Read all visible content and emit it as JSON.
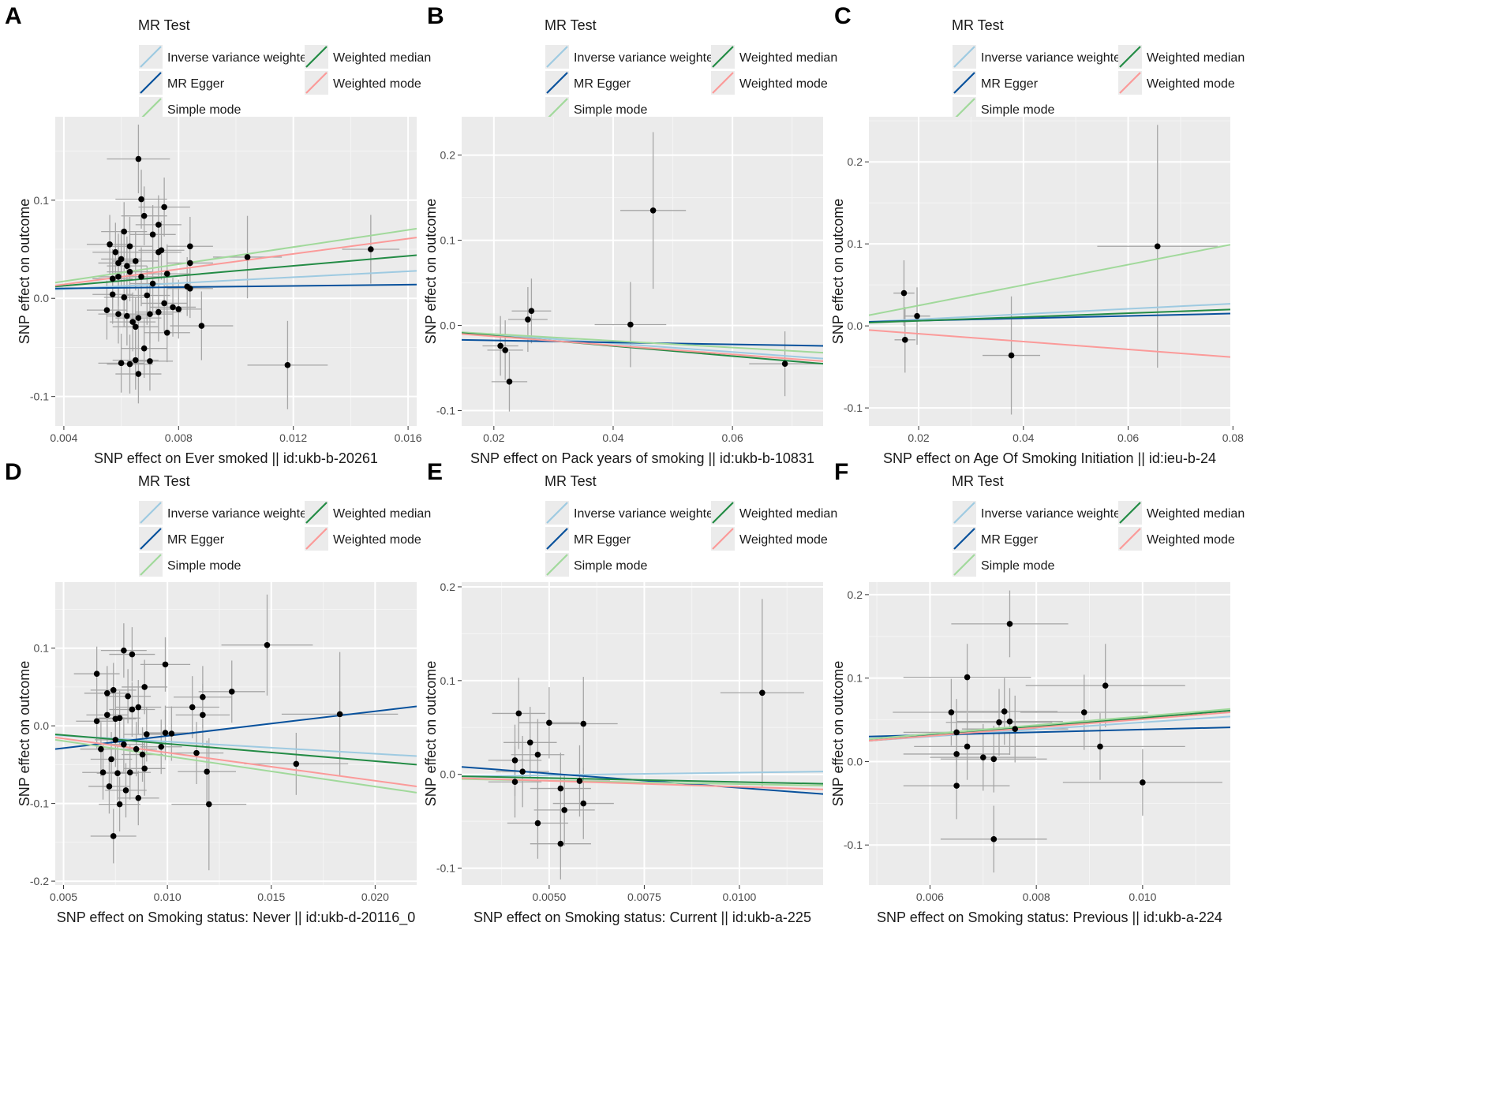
{
  "legend": {
    "title": "MR Test",
    "methods": [
      {
        "key": "ivw",
        "label": "Inverse variance weighted",
        "color": "#9ecae1"
      },
      {
        "key": "egger",
        "label": "MR Egger",
        "color": "#08519c"
      },
      {
        "key": "simple",
        "label": "Simple mode",
        "color": "#a1d99b"
      },
      {
        "key": "wmedian",
        "label": "Weighted median",
        "color": "#238b45"
      },
      {
        "key": "wmode",
        "label": "Weighted mode",
        "color": "#fb9a99"
      }
    ]
  },
  "ylabel": "SNP effect on outcome",
  "chart_data": [
    {
      "panel": "A",
      "type": "scatter",
      "xlabel": "SNP effect on Ever smoked || id:ukb-b-20261",
      "xlim": [
        0.0037,
        0.0163
      ],
      "ylim": [
        -0.13,
        0.185
      ],
      "xticks": [
        0.004,
        0.008,
        0.012,
        0.016
      ],
      "xtick_labels": [
        "0.004",
        "0.008",
        "0.012",
        "0.016"
      ],
      "yticks": [
        -0.1,
        0.0,
        0.1
      ],
      "ytick_labels": [
        "-0.1",
        "0.0",
        "0.1"
      ],
      "lines": {
        "ivw": [
          0.009,
          0.028
        ],
        "egger": [
          0.01,
          0.014
        ],
        "simple": [
          0.016,
          0.071
        ],
        "wmedian": [
          0.012,
          0.044
        ],
        "wmode": [
          0.013,
          0.062
        ]
      },
      "points": [
        [
          0.0066,
          0.142,
          0.0011,
          0.035
        ],
        [
          0.0067,
          0.101,
          0.0009,
          0.03
        ],
        [
          0.0075,
          0.093,
          0.0009,
          0.03
        ],
        [
          0.0068,
          0.084,
          0.0008,
          0.03
        ],
        [
          0.0073,
          0.075,
          0.0008,
          0.03
        ],
        [
          0.0061,
          0.068,
          0.0008,
          0.03
        ],
        [
          0.0071,
          0.065,
          0.0008,
          0.03
        ],
        [
          0.0056,
          0.055,
          0.0008,
          0.03
        ],
        [
          0.0063,
          0.053,
          0.0008,
          0.03
        ],
        [
          0.0058,
          0.047,
          0.0008,
          0.03
        ],
        [
          0.0074,
          0.049,
          0.0008,
          0.03
        ],
        [
          0.006,
          0.04,
          0.0007,
          0.03
        ],
        [
          0.0065,
          0.038,
          0.0008,
          0.03
        ],
        [
          0.0073,
          0.047,
          0.0008,
          0.03
        ],
        [
          0.0059,
          0.036,
          0.0007,
          0.03
        ],
        [
          0.0062,
          0.033,
          0.0007,
          0.03
        ],
        [
          0.0084,
          0.053,
          0.0008,
          0.03
        ],
        [
          0.0084,
          0.036,
          0.0008,
          0.03
        ],
        [
          0.0057,
          0.02,
          0.0007,
          0.03
        ],
        [
          0.0059,
          0.022,
          0.0007,
          0.03
        ],
        [
          0.0063,
          0.027,
          0.0008,
          0.03
        ],
        [
          0.0067,
          0.022,
          0.0008,
          0.03
        ],
        [
          0.0076,
          0.025,
          0.0008,
          0.03
        ],
        [
          0.0071,
          0.015,
          0.0008,
          0.03
        ],
        [
          0.0083,
          0.012,
          0.0008,
          0.03
        ],
        [
          0.0084,
          0.01,
          0.0008,
          0.03
        ],
        [
          0.0057,
          0.004,
          0.0007,
          0.03
        ],
        [
          0.0061,
          0.001,
          0.0007,
          0.03
        ],
        [
          0.0069,
          0.003,
          0.0008,
          0.03
        ],
        [
          0.0075,
          -0.005,
          0.0008,
          0.03
        ],
        [
          0.0078,
          -0.009,
          0.0008,
          0.03
        ],
        [
          0.008,
          -0.011,
          0.0008,
          0.03
        ],
        [
          0.0055,
          -0.012,
          0.0007,
          0.03
        ],
        [
          0.0059,
          -0.016,
          0.0007,
          0.03
        ],
        [
          0.0062,
          -0.018,
          0.0007,
          0.03
        ],
        [
          0.0066,
          -0.02,
          0.0008,
          0.03
        ],
        [
          0.007,
          -0.016,
          0.0008,
          0.03
        ],
        [
          0.0073,
          -0.014,
          0.0008,
          0.03
        ],
        [
          0.0064,
          -0.024,
          0.0008,
          0.03
        ],
        [
          0.0065,
          -0.029,
          0.0008,
          0.03
        ],
        [
          0.0076,
          -0.035,
          0.0008,
          0.03
        ],
        [
          0.0088,
          -0.028,
          0.0011,
          0.035
        ],
        [
          0.0068,
          -0.051,
          0.0008,
          0.03
        ],
        [
          0.006,
          -0.066,
          0.0008,
          0.03
        ],
        [
          0.0063,
          -0.067,
          0.0008,
          0.03
        ],
        [
          0.0065,
          -0.063,
          0.0008,
          0.03
        ],
        [
          0.007,
          -0.064,
          0.0008,
          0.03
        ],
        [
          0.0066,
          -0.077,
          0.0008,
          0.03
        ],
        [
          0.0104,
          0.042,
          0.0012,
          0.042
        ],
        [
          0.0147,
          0.05,
          0.001,
          0.035
        ],
        [
          0.0118,
          -0.068,
          0.0014,
          0.045
        ]
      ]
    },
    {
      "panel": "B",
      "type": "scatter",
      "xlabel": "SNP effect on Pack years of smoking || id:ukb-b-10831",
      "xlim": [
        0.0146,
        0.0752
      ],
      "ylim": [
        -0.118,
        0.245
      ],
      "xticks": [
        0.02,
        0.04,
        0.06
      ],
      "xtick_labels": [
        "0.02",
        "0.04",
        "0.06"
      ],
      "yticks": [
        -0.1,
        0.0,
        0.1,
        0.2
      ],
      "ytick_labels": [
        "-0.1",
        "0.0",
        "0.1",
        "0.2"
      ],
      "lines": {
        "ivw": [
          -0.008,
          -0.039
        ],
        "egger": [
          -0.017,
          -0.024
        ],
        "simple": [
          -0.008,
          -0.032
        ],
        "wmedian": [
          -0.009,
          -0.045
        ],
        "wmode": [
          -0.01,
          -0.042
        ]
      },
      "points": [
        [
          0.0467,
          0.135,
          0.0055,
          0.092
        ],
        [
          0.0263,
          0.017,
          0.0033,
          0.038
        ],
        [
          0.0257,
          0.007,
          0.0033,
          0.038
        ],
        [
          0.0429,
          0.001,
          0.006,
          0.05
        ],
        [
          0.0211,
          -0.024,
          0.003,
          0.035
        ],
        [
          0.0219,
          -0.029,
          0.003,
          0.035
        ],
        [
          0.0226,
          -0.066,
          0.003,
          0.035
        ],
        [
          0.0688,
          -0.045,
          0.006,
          0.038
        ]
      ]
    },
    {
      "panel": "C",
      "type": "scatter",
      "xlabel": "SNP effect on Age Of Smoking Initiation || id:ieu-b-24",
      "xlim": [
        0.0105,
        0.0795
      ],
      "ylim": [
        -0.122,
        0.255
      ],
      "xticks": [
        0.02,
        0.04,
        0.06,
        0.08
      ],
      "xtick_labels": [
        "0.02",
        "0.04",
        "0.06",
        "0.08"
      ],
      "yticks": [
        -0.1,
        0.0,
        0.1,
        0.2
      ],
      "ytick_labels": [
        "-0.1",
        "0.0",
        "0.1",
        "0.2"
      ],
      "lines": {
        "ivw": [
          0.005,
          0.027
        ],
        "egger": [
          0.005,
          0.015
        ],
        "simple": [
          0.013,
          0.099
        ],
        "wmedian": [
          0.004,
          0.02
        ],
        "wmode": [
          -0.005,
          -0.038
        ]
      },
      "points": [
        [
          0.0172,
          0.04,
          0.002,
          0.04
        ],
        [
          0.0174,
          -0.017,
          0.002,
          0.04
        ],
        [
          0.0197,
          0.012,
          0.0025,
          0.035
        ],
        [
          0.0377,
          -0.036,
          0.0055,
          0.072
        ],
        [
          0.0656,
          0.097,
          0.0115,
          0.148
        ]
      ]
    },
    {
      "panel": "D",
      "type": "scatter",
      "xlabel": "SNP effect on Smoking status: Never || id:ukb-d-20116_0",
      "xlim": [
        0.0046,
        0.022
      ],
      "ylim": [
        -0.205,
        0.185
      ],
      "xticks": [
        0.005,
        0.01,
        0.015,
        0.02
      ],
      "xtick_labels": [
        "0.005",
        "0.010",
        "0.015",
        "0.020"
      ],
      "yticks": [
        -0.2,
        -0.1,
        0.0,
        0.1
      ],
      "ytick_labels": [
        "-0.2",
        "-0.1",
        "0.0",
        "0.1"
      ],
      "lines": {
        "ivw": [
          -0.012,
          -0.039
        ],
        "egger": [
          -0.03,
          0.025
        ],
        "simple": [
          -0.018,
          -0.086
        ],
        "wmedian": [
          -0.011,
          -0.05
        ],
        "wmode": [
          -0.015,
          -0.078
        ]
      },
      "points": [
        [
          0.0066,
          0.067,
          0.0011,
          0.035
        ],
        [
          0.0079,
          0.097,
          0.0011,
          0.035
        ],
        [
          0.0083,
          0.092,
          0.0011,
          0.035
        ],
        [
          0.0099,
          0.079,
          0.0012,
          0.035
        ],
        [
          0.0089,
          0.05,
          0.0011,
          0.035
        ],
        [
          0.0074,
          0.046,
          0.0011,
          0.035
        ],
        [
          0.0071,
          0.042,
          0.0011,
          0.035
        ],
        [
          0.0081,
          0.038,
          0.0011,
          0.035
        ],
        [
          0.0086,
          0.024,
          0.0011,
          0.035
        ],
        [
          0.0071,
          0.014,
          0.001,
          0.035
        ],
        [
          0.0075,
          0.009,
          0.001,
          0.035
        ],
        [
          0.0077,
          0.01,
          0.001,
          0.035
        ],
        [
          0.0066,
          0.006,
          0.001,
          0.035
        ],
        [
          0.0083,
          0.021,
          0.0011,
          0.035
        ],
        [
          0.009,
          -0.011,
          0.0011,
          0.035
        ],
        [
          0.0099,
          -0.009,
          0.0011,
          0.035
        ],
        [
          0.0102,
          -0.01,
          0.0011,
          0.035
        ],
        [
          0.0068,
          -0.03,
          0.001,
          0.035
        ],
        [
          0.0075,
          -0.018,
          0.001,
          0.035
        ],
        [
          0.0079,
          -0.024,
          0.001,
          0.035
        ],
        [
          0.0085,
          -0.03,
          0.001,
          0.035
        ],
        [
          0.0088,
          -0.037,
          0.001,
          0.035
        ],
        [
          0.0073,
          -0.043,
          0.001,
          0.035
        ],
        [
          0.0069,
          -0.06,
          0.001,
          0.035
        ],
        [
          0.0076,
          -0.061,
          0.001,
          0.035
        ],
        [
          0.0082,
          -0.06,
          0.001,
          0.035
        ],
        [
          0.0089,
          -0.055,
          0.001,
          0.035
        ],
        [
          0.0097,
          -0.027,
          0.001,
          0.035
        ],
        [
          0.0072,
          -0.078,
          0.001,
          0.035
        ],
        [
          0.008,
          -0.083,
          0.001,
          0.035
        ],
        [
          0.0086,
          -0.093,
          0.001,
          0.035
        ],
        [
          0.0077,
          -0.101,
          0.001,
          0.035
        ],
        [
          0.0074,
          -0.142,
          0.0011,
          0.035
        ],
        [
          0.0117,
          0.037,
          0.0014,
          0.04
        ],
        [
          0.0131,
          0.044,
          0.0016,
          0.04
        ],
        [
          0.0112,
          0.024,
          0.0013,
          0.04
        ],
        [
          0.0117,
          0.014,
          0.0013,
          0.04
        ],
        [
          0.0114,
          -0.035,
          0.0013,
          0.04
        ],
        [
          0.0119,
          -0.059,
          0.0014,
          0.04
        ],
        [
          0.012,
          -0.101,
          0.0018,
          0.085
        ],
        [
          0.0148,
          0.104,
          0.0022,
          0.065
        ],
        [
          0.0162,
          -0.049,
          0.0025,
          0.04
        ],
        [
          0.0183,
          0.015,
          0.0028,
          0.08
        ]
      ]
    },
    {
      "panel": "E",
      "type": "scatter",
      "xlabel": "SNP effect on Smoking status: Current || id:ukb-a-225",
      "xlim": [
        0.0027,
        0.0122
      ],
      "ylim": [
        -0.118,
        0.205
      ],
      "xticks": [
        0.005,
        0.0075,
        0.01
      ],
      "xtick_labels": [
        "0.0050",
        "0.0075",
        "0.0100"
      ],
      "yticks": [
        -0.1,
        0.0,
        0.1,
        0.2
      ],
      "ytick_labels": [
        "-0.1",
        "0.0",
        "0.1",
        "0.2"
      ],
      "lines": {
        "ivw": [
          -0.002,
          0.003
        ],
        "egger": [
          0.008,
          -0.021
        ],
        "simple": [
          -0.005,
          -0.012
        ],
        "wmedian": [
          -0.002,
          -0.01
        ],
        "wmode": [
          -0.004,
          -0.016
        ]
      },
      "points": [
        [
          0.0106,
          0.087,
          0.0011,
          0.1
        ],
        [
          0.0042,
          0.065,
          0.0007,
          0.038
        ],
        [
          0.005,
          0.055,
          0.0008,
          0.038
        ],
        [
          0.0059,
          0.054,
          0.0009,
          0.05
        ],
        [
          0.0045,
          0.034,
          0.0007,
          0.038
        ],
        [
          0.0047,
          0.021,
          0.0007,
          0.038
        ],
        [
          0.0041,
          0.015,
          0.0007,
          0.038
        ],
        [
          0.0043,
          0.003,
          0.0007,
          0.038
        ],
        [
          0.0041,
          -0.008,
          0.0007,
          0.038
        ],
        [
          0.0058,
          -0.007,
          0.0008,
          0.038
        ],
        [
          0.0053,
          -0.015,
          0.0008,
          0.038
        ],
        [
          0.0059,
          -0.031,
          0.0008,
          0.038
        ],
        [
          0.0054,
          -0.038,
          0.0008,
          0.038
        ],
        [
          0.0047,
          -0.052,
          0.0008,
          0.038
        ],
        [
          0.0053,
          -0.074,
          0.0008,
          0.038
        ]
      ]
    },
    {
      "panel": "F",
      "type": "scatter",
      "xlabel": "SNP effect on Smoking status: Previous || id:ukb-a-224",
      "xlim": [
        0.00485,
        0.01165
      ],
      "ylim": [
        -0.148,
        0.215
      ],
      "xticks": [
        0.006,
        0.008,
        0.01
      ],
      "xtick_labels": [
        "0.006",
        "0.008",
        "0.010"
      ],
      "yticks": [
        -0.1,
        0.0,
        0.1,
        0.2
      ],
      "ytick_labels": [
        "-0.1",
        "0.0",
        "0.1",
        "0.2"
      ],
      "lines": {
        "ivw": [
          0.025,
          0.054
        ],
        "egger": [
          0.03,
          0.041
        ],
        "simple": [
          0.027,
          0.063
        ],
        "wmedian": [
          0.025,
          0.061
        ],
        "wmode": [
          0.025,
          0.059
        ]
      },
      "points": [
        [
          0.0075,
          0.165,
          0.0011,
          0.04
        ],
        [
          0.0067,
          0.101,
          0.0012,
          0.04
        ],
        [
          0.0093,
          0.091,
          0.0015,
          0.05
        ],
        [
          0.0064,
          0.059,
          0.0011,
          0.04
        ],
        [
          0.0074,
          0.06,
          0.001,
          0.04
        ],
        [
          0.0073,
          0.047,
          0.001,
          0.04
        ],
        [
          0.0075,
          0.048,
          0.001,
          0.04
        ],
        [
          0.0065,
          0.035,
          0.001,
          0.04
        ],
        [
          0.0076,
          0.039,
          0.001,
          0.04
        ],
        [
          0.0089,
          0.059,
          0.0012,
          0.045
        ],
        [
          0.0067,
          0.018,
          0.001,
          0.04
        ],
        [
          0.0092,
          0.018,
          0.0016,
          0.04
        ],
        [
          0.0065,
          0.009,
          0.001,
          0.04
        ],
        [
          0.007,
          0.005,
          0.001,
          0.04
        ],
        [
          0.0072,
          0.003,
          0.001,
          0.04
        ],
        [
          0.0065,
          -0.029,
          0.001,
          0.04
        ],
        [
          0.01,
          -0.025,
          0.0015,
          0.04
        ],
        [
          0.0072,
          -0.093,
          0.001,
          0.04
        ]
      ]
    }
  ]
}
